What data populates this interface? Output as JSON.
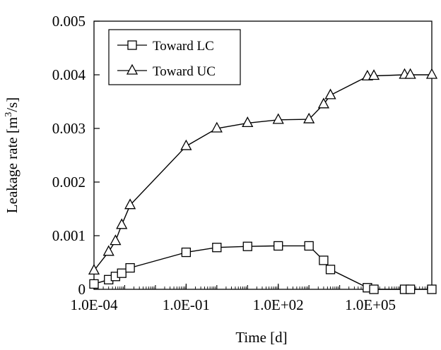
{
  "chart_data": {
    "type": "line",
    "xscale": "log",
    "xlabel": "Time [d]",
    "ylabel_main": "Leakage rate [m",
    "ylabel_sup": "3",
    "ylabel_tail": "/s]",
    "xlim": [
      0.0001,
      10000000
    ],
    "ylim": [
      0,
      0.005
    ],
    "x_ticks": [
      {
        "value": 0.0001,
        "label": "1.0E-04"
      },
      {
        "value": 0.1,
        "label": "1.0E-01"
      },
      {
        "value": 100,
        "label": "1.0E+02"
      },
      {
        "value": 100000,
        "label": "1.0E+05"
      }
    ],
    "y_ticks": [
      {
        "value": 0,
        "label": "0"
      },
      {
        "value": 0.001,
        "label": "0.001"
      },
      {
        "value": 0.002,
        "label": "0.002"
      },
      {
        "value": 0.003,
        "label": "0.003"
      },
      {
        "value": 0.004,
        "label": "0.004"
      },
      {
        "value": 0.005,
        "label": "0.005"
      }
    ],
    "legend_position": "top-left",
    "series": [
      {
        "name": "Toward LC",
        "marker": "square",
        "x": [
          0.0001,
          0.0003,
          0.0005,
          0.0008,
          0.0015,
          0.1,
          1,
          10,
          100,
          1000,
          3000,
          5000,
          80000,
          130000,
          1300000,
          2000000,
          10000000
        ],
        "y": [
          0.0001,
          0.00018,
          0.00024,
          0.0003,
          0.0004,
          0.00069,
          0.00078,
          0.0008,
          0.00081,
          0.00081,
          0.00054,
          0.00037,
          3e-05,
          0.0,
          0.0,
          0.0,
          0.0
        ]
      },
      {
        "name": "Toward UC",
        "marker": "triangle",
        "x": [
          0.0001,
          0.0003,
          0.0005,
          0.0008,
          0.0015,
          0.1,
          1,
          10,
          100,
          1000,
          3000,
          5000,
          80000,
          130000,
          1300000,
          2000000,
          10000000
        ],
        "y": [
          0.00035,
          0.0007,
          0.0009,
          0.0012,
          0.00157,
          0.00267,
          0.003,
          0.0031,
          0.00316,
          0.00317,
          0.00345,
          0.00362,
          0.00397,
          0.00398,
          0.004,
          0.004,
          0.004
        ]
      }
    ]
  }
}
